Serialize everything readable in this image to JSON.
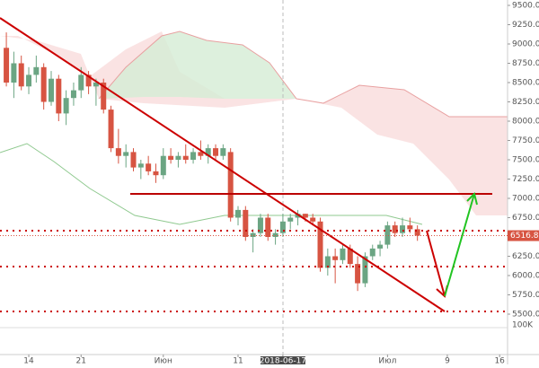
{
  "chart_data": {
    "type": "candlestick",
    "categories": [
      null,
      null,
      null,
      null,
      null,
      null,
      null,
      null,
      null,
      null,
      null,
      null,
      null,
      null,
      null,
      null,
      null,
      null,
      null,
      null,
      null,
      null,
      null,
      null,
      null,
      null,
      null,
      null,
      null,
      null,
      null,
      null,
      null,
      null,
      null,
      null,
      null,
      null,
      null,
      null,
      null,
      null,
      null,
      null,
      null,
      null,
      null,
      null,
      null,
      null,
      null,
      null,
      null,
      null,
      null,
      null
    ],
    "open": [
      8950,
      8500,
      8750,
      8450,
      8600,
      8700,
      8250,
      8550,
      8100,
      8300,
      8400,
      8600,
      8450,
      8500,
      8150,
      7650,
      7550,
      7600,
      7400,
      7450,
      7350,
      7300,
      7550,
      7500,
      7550,
      7500,
      7600,
      7550,
      7650,
      7550,
      7600,
      6750,
      6850,
      6500,
      6550,
      6750,
      6500,
      6550,
      6700,
      6750,
      6800,
      6750,
      6700,
      6100,
      6250,
      6200,
      6350,
      6150,
      5900,
      6250,
      6350,
      6400,
      6650,
      6550,
      6650,
      6600
    ],
    "high": [
      9150,
      8900,
      8850,
      8700,
      8850,
      8750,
      8650,
      8600,
      8400,
      8500,
      8700,
      8650,
      8550,
      8550,
      8200,
      7900,
      7700,
      7650,
      7500,
      7550,
      7450,
      7650,
      7650,
      7600,
      7700,
      7650,
      7750,
      7700,
      7700,
      7700,
      7650,
      6900,
      6900,
      6600,
      6800,
      6800,
      6600,
      6800,
      6800,
      6850,
      6800,
      6800,
      6750,
      6350,
      6350,
      6400,
      6400,
      6250,
      6300,
      6400,
      6450,
      6700,
      6700,
      6750,
      6750,
      6650
    ],
    "low": [
      8450,
      8300,
      8400,
      8350,
      8500,
      8150,
      8200,
      8000,
      7950,
      8200,
      8300,
      8350,
      8200,
      8100,
      7600,
      7450,
      7400,
      7350,
      7250,
      7300,
      7200,
      7250,
      7450,
      7400,
      7450,
      7450,
      7500,
      7450,
      7500,
      7500,
      6700,
      6650,
      6450,
      6300,
      6500,
      6450,
      6400,
      6500,
      6600,
      6650,
      6700,
      6650,
      6050,
      6000,
      5900,
      6150,
      6100,
      5800,
      5850,
      6200,
      6250,
      6350,
      6500,
      6500,
      6550,
      6450
    ],
    "close": [
      8500,
      8750,
      8450,
      8600,
      8700,
      8250,
      8550,
      8100,
      8300,
      8400,
      8600,
      8450,
      8500,
      8150,
      7650,
      7550,
      7600,
      7400,
      7450,
      7350,
      7300,
      7550,
      7500,
      7550,
      7500,
      7600,
      7550,
      7650,
      7550,
      7650,
      6750,
      6850,
      6500,
      6550,
      6750,
      6500,
      6550,
      6700,
      6750,
      6800,
      6750,
      6700,
      6100,
      6250,
      6200,
      6350,
      6150,
      5900,
      6250,
      6350,
      6400,
      6650,
      6550,
      6650,
      6600,
      6516.8
    ],
    "up_color": "#6ba583",
    "down_color": "#d75442",
    "xlim": [
      -0.85,
      67.06
    ],
    "xticks": [
      {
        "value": 3,
        "label": "14"
      },
      {
        "value": 10,
        "label": "21"
      },
      {
        "value": 21,
        "label": "Июн"
      },
      {
        "value": 31,
        "label": "11"
      },
      {
        "value": 37,
        "label": "2018-06-17"
      },
      {
        "value": 51,
        "label": "Июл"
      },
      {
        "value": 59,
        "label": "9"
      },
      {
        "value": 66,
        "label": "16"
      }
    ],
    "ylim": [
      5383.7,
      9569.8
    ],
    "yticks": [
      {
        "value": 5500,
        "label": "5500.0"
      },
      {
        "value": 5750,
        "label": "5750.0"
      },
      {
        "value": 6000,
        "label": "6000.0"
      },
      {
        "value": 6250,
        "label": "6250.0"
      },
      {
        "value": 6500,
        "label": "6500.0"
      },
      {
        "value": 6750,
        "label": "6750.0"
      },
      {
        "value": 7000,
        "label": "7000.0"
      },
      {
        "value": 7250,
        "label": "7250.0"
      },
      {
        "value": 7500,
        "label": "7500.0"
      },
      {
        "value": 7750,
        "label": "7750.0"
      },
      {
        "value": 8000,
        "label": "8000.0"
      },
      {
        "value": 8250,
        "label": "8250.0"
      },
      {
        "value": 8500,
        "label": "8500.0"
      },
      {
        "value": 8750,
        "label": "8750.0"
      },
      {
        "value": 9000,
        "label": "9000.0"
      },
      {
        "value": 9250,
        "label": "9250.0"
      },
      {
        "value": 9500,
        "label": "9500.0"
      }
    ],
    "last_price": 6516.8,
    "volume_label": "100K"
  }
}
